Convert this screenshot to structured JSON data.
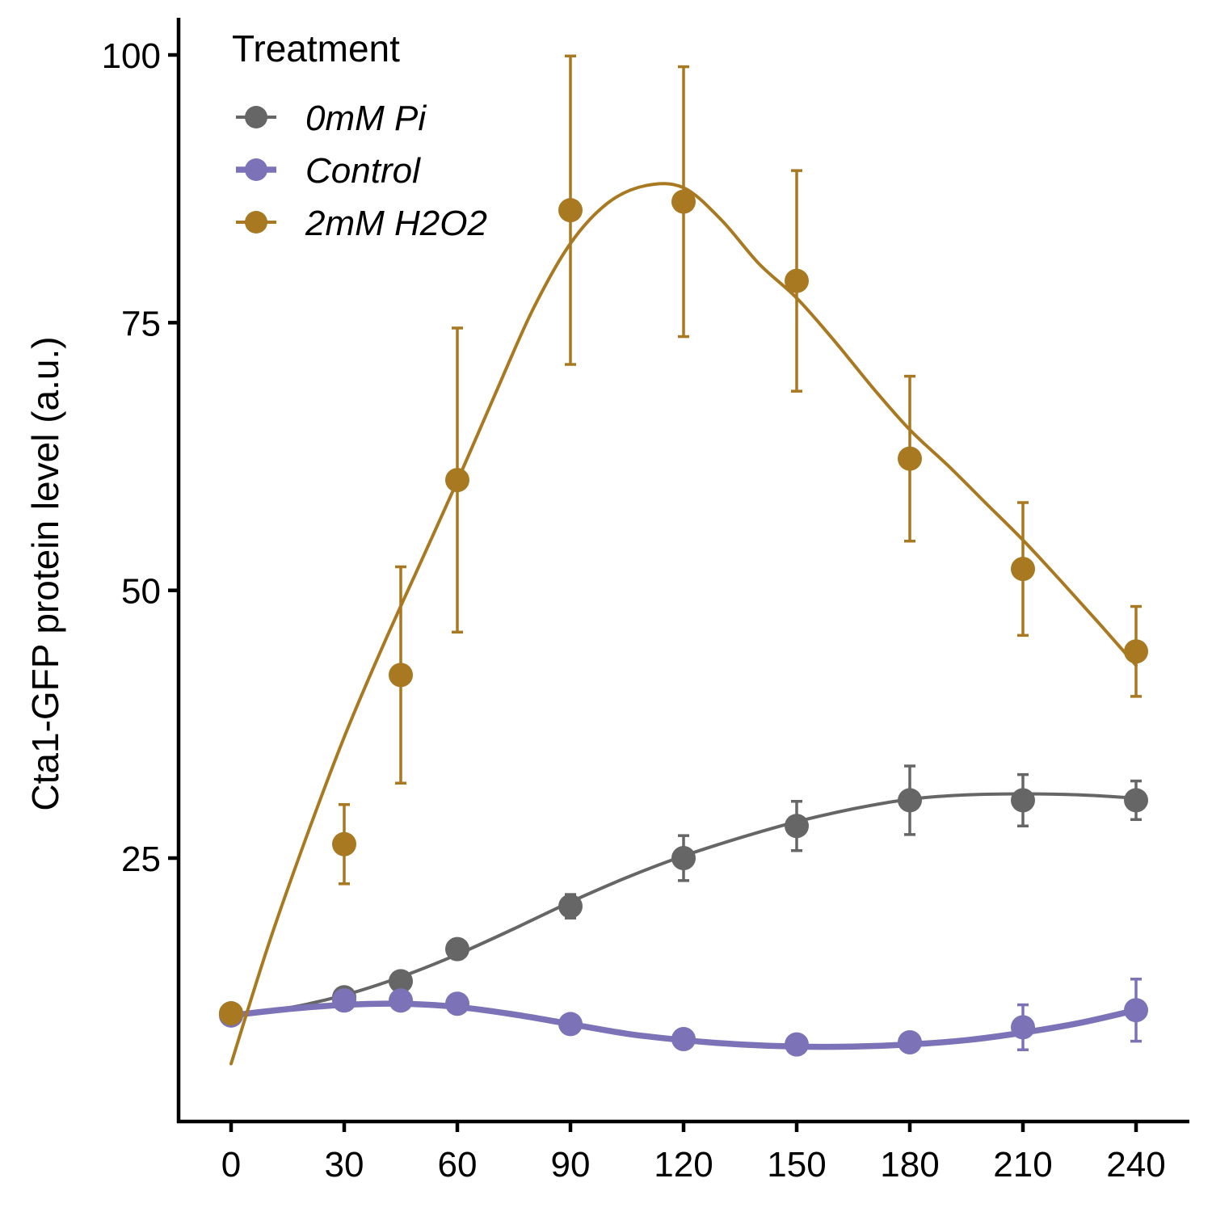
{
  "chart_data": {
    "type": "line",
    "xlabel": "",
    "ylabel": "Cta1-GFP protein level (a.u.)",
    "xlim": [
      -5,
      247
    ],
    "ylim": [
      2.5,
      103.5
    ],
    "xticks": [
      0,
      30,
      60,
      90,
      120,
      150,
      180,
      210,
      240
    ],
    "yticks": [
      25,
      50,
      75,
      100
    ],
    "grid": false,
    "legend": {
      "title": "Treatment",
      "position": "top-left",
      "entries": [
        "0mM Pi",
        "Control",
        "2mM H2O2"
      ]
    },
    "series": [
      {
        "name": "0mM Pi",
        "color": "#666666",
        "x": [
          0,
          30,
          45,
          60,
          90,
          120,
          150,
          180,
          210,
          240
        ],
        "y": [
          10.5,
          12.0,
          13.5,
          16.5,
          20.5,
          25.0,
          28.0,
          30.4,
          30.4,
          30.4
        ],
        "err": [
          0.8,
          0.6,
          0.6,
          0.9,
          1.1,
          2.1,
          2.3,
          3.2,
          2.4,
          1.8
        ],
        "smooth_x": [
          0,
          15,
          30,
          45,
          60,
          75,
          90,
          105,
          120,
          135,
          150,
          165,
          180,
          195,
          210,
          225,
          240
        ],
        "smooth_y": [
          10.3,
          11.0,
          12.2,
          13.9,
          16.0,
          18.4,
          20.9,
          23.2,
          25.2,
          26.9,
          28.4,
          29.6,
          30.5,
          30.9,
          31.0,
          30.9,
          30.6
        ]
      },
      {
        "name": "Control",
        "color": "#7b72b8",
        "x": [
          0,
          30,
          45,
          60,
          90,
          120,
          150,
          180,
          210,
          240
        ],
        "y": [
          10.3,
          11.7,
          11.7,
          11.4,
          9.5,
          8.1,
          7.6,
          7.8,
          9.2,
          10.8
        ],
        "err": [
          0.6,
          0.9,
          0.7,
          0.6,
          0.5,
          0.5,
          0.4,
          0.5,
          2.1,
          2.9
        ],
        "smooth_x": [
          0,
          15,
          30,
          45,
          60,
          75,
          90,
          105,
          120,
          135,
          150,
          165,
          180,
          195,
          210,
          225,
          240
        ],
        "smooth_y": [
          10.3,
          10.9,
          11.3,
          11.4,
          11.1,
          10.4,
          9.5,
          8.6,
          8.0,
          7.6,
          7.4,
          7.4,
          7.6,
          8.0,
          8.7,
          9.6,
          10.8
        ]
      },
      {
        "name": "2mM H2O2",
        "color": "#a87920",
        "x": [
          0,
          30,
          45,
          60,
          90,
          120,
          150,
          180,
          210,
          240
        ],
        "y": [
          10.5,
          26.3,
          42.1,
          60.3,
          85.5,
          86.3,
          78.9,
          62.3,
          52.0,
          44.3
        ],
        "err": [
          0.8,
          3.7,
          10.1,
          14.2,
          14.4,
          12.6,
          10.3,
          7.7,
          6.2,
          4.2
        ],
        "smooth_x": [
          0,
          10,
          20,
          30,
          40,
          50,
          60,
          70,
          80,
          90,
          100,
          110,
          120,
          130,
          140,
          150,
          160,
          170,
          180,
          190,
          200,
          210,
          220,
          230,
          240
        ],
        "smooth_y": [
          5.8,
          17.0,
          27.0,
          36.3,
          44.6,
          52.4,
          60.2,
          68.3,
          76.2,
          82.4,
          86.2,
          87.8,
          87.6,
          84.6,
          80.5,
          77.3,
          73.3,
          69.0,
          65.0,
          61.7,
          58.2,
          54.7,
          50.9,
          47.0,
          43.0
        ]
      }
    ]
  }
}
